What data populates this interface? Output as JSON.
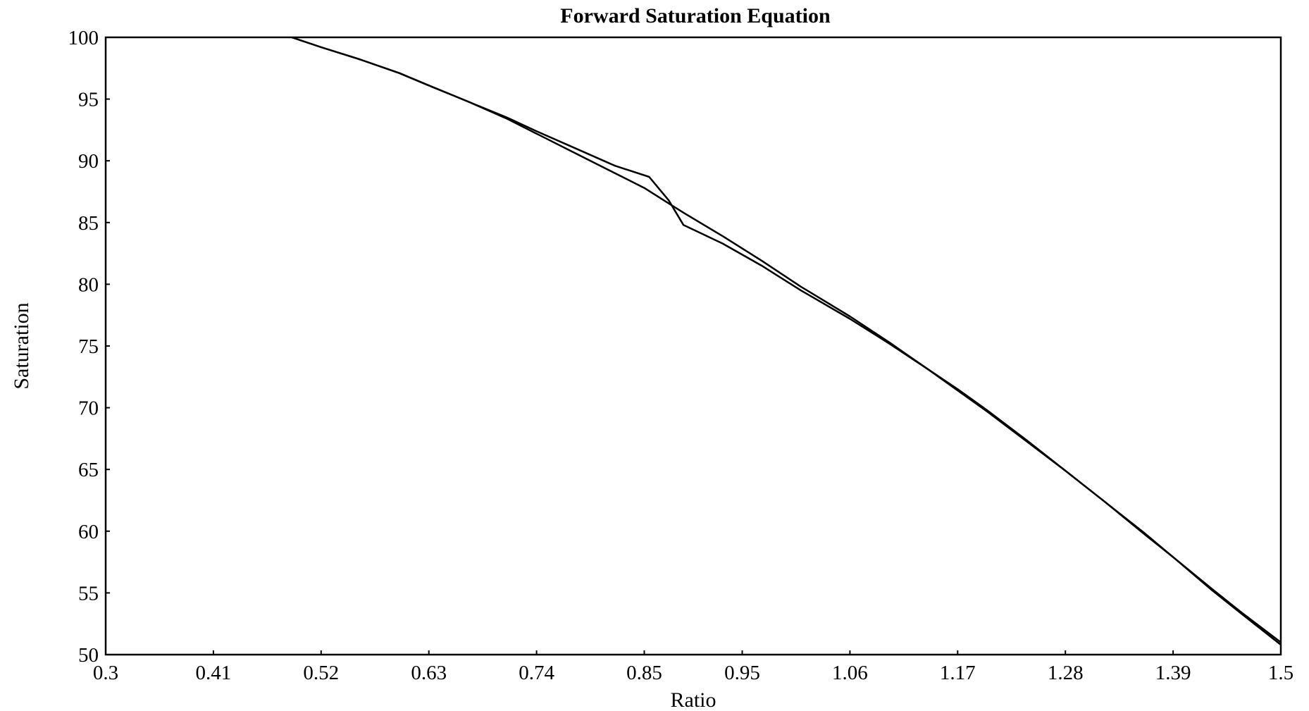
{
  "chart_data": {
    "type": "line",
    "title": "Forward Saturation Equation",
    "xlabel": "Ratio",
    "ylabel": "Saturation",
    "xlim": [
      0.3,
      1.5
    ],
    "ylim": [
      50,
      100
    ],
    "x_ticks": [
      0.3,
      0.41,
      0.52,
      0.63,
      0.74,
      0.85,
      0.95,
      1.06,
      1.17,
      1.28,
      1.39,
      1.5
    ],
    "x_tick_labels": [
      "0.3",
      "0.41",
      "0.52",
      "0.63",
      "0.74",
      "0.85",
      "0.95",
      "1.06",
      "1.17",
      "1.28",
      "1.39",
      "1.5"
    ],
    "y_ticks": [
      50,
      55,
      60,
      65,
      70,
      75,
      80,
      85,
      90,
      95,
      100
    ],
    "y_tick_labels": [
      "50",
      "55",
      "60",
      "65",
      "70",
      "75",
      "80",
      "85",
      "90",
      "95",
      "100"
    ],
    "grid": false,
    "legend": "none",
    "line_color": "#000000",
    "series": [
      {
        "x": [
          0.49,
          0.52,
          0.56,
          0.6,
          0.63,
          0.67,
          0.71,
          0.74,
          0.78,
          0.82,
          0.85,
          0.87,
          0.89,
          0.93,
          0.97,
          1.01,
          1.06,
          1.1,
          1.14,
          1.17,
          1.2,
          1.24,
          1.28,
          1.32,
          1.36,
          1.39,
          1.43,
          1.46,
          1.5
        ],
        "y": [
          100,
          99.2,
          98.2,
          97.1,
          96.1,
          94.8,
          93.4,
          92.2,
          90.6,
          89.0,
          87.8,
          86.8,
          85.8,
          83.9,
          81.9,
          79.8,
          77.4,
          75.3,
          73.1,
          71.4,
          69.7,
          67.3,
          64.9,
          62.4,
          59.8,
          57.9,
          55.2,
          53.3,
          50.8
        ]
      },
      {
        "x": [
          0.49,
          0.52,
          0.56,
          0.6,
          0.63,
          0.67,
          0.71,
          0.74,
          0.78,
          0.82,
          0.855,
          0.875,
          0.89,
          0.93,
          0.97,
          1.01,
          1.06,
          1.1,
          1.14,
          1.17,
          1.2,
          1.24,
          1.28,
          1.32,
          1.36,
          1.39,
          1.43,
          1.46,
          1.5
        ],
        "y": [
          100,
          99.2,
          98.2,
          97.1,
          96.1,
          94.8,
          93.5,
          92.4,
          91.0,
          89.6,
          88.7,
          86.8,
          84.8,
          83.3,
          81.5,
          79.5,
          77.2,
          75.2,
          73.1,
          71.5,
          69.8,
          67.4,
          64.9,
          62.4,
          59.9,
          57.9,
          55.3,
          53.4,
          51.0
        ]
      }
    ]
  }
}
